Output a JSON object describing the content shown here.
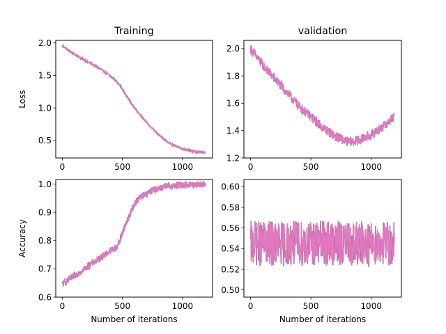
{
  "colors": {
    "series": "#e377c2",
    "underlay": "#555555",
    "frame": "#000000",
    "background": "#ffffff"
  },
  "chart_data": [
    {
      "id": "training-loss",
      "type": "line",
      "title": "Training",
      "xlabel": "",
      "ylabel": "Loss",
      "xlim": [
        -55,
        1250
      ],
      "ylim": [
        0.23,
        2.04
      ],
      "xticks": [
        0,
        500,
        1000
      ],
      "xtick_labels": [
        "0",
        "500",
        "1000"
      ],
      "yticks": [
        0.5,
        1.0,
        1.5,
        2.0
      ],
      "ytick_labels": [
        "0.5",
        "1.0",
        "1.5",
        "2.0"
      ],
      "grid": false,
      "x": [
        0,
        50,
        100,
        150,
        200,
        250,
        300,
        350,
        400,
        450,
        480,
        500,
        550,
        600,
        650,
        700,
        750,
        800,
        850,
        900,
        950,
        1000,
        1050,
        1100,
        1150,
        1190
      ],
      "y": [
        1.96,
        1.89,
        1.83,
        1.77,
        1.72,
        1.67,
        1.62,
        1.56,
        1.49,
        1.41,
        1.35,
        1.28,
        1.14,
        1.0,
        0.89,
        0.78,
        0.68,
        0.59,
        0.51,
        0.45,
        0.41,
        0.37,
        0.35,
        0.33,
        0.32,
        0.31
      ],
      "noise": 0.012
    },
    {
      "id": "validation-loss",
      "type": "line",
      "title": "validation",
      "xlabel": "",
      "ylabel": "",
      "xlim": [
        -55,
        1250
      ],
      "ylim": [
        1.2,
        2.06
      ],
      "xticks": [
        0,
        500,
        1000
      ],
      "xtick_labels": [
        "0",
        "500",
        "1000"
      ],
      "yticks": [
        1.2,
        1.4,
        1.6,
        1.8,
        2.0
      ],
      "ytick_labels": [
        "1.2",
        "1.4",
        "1.6",
        "1.8",
        "2.0"
      ],
      "grid": false,
      "x": [
        0,
        50,
        100,
        150,
        200,
        250,
        300,
        350,
        400,
        450,
        500,
        550,
        600,
        650,
        700,
        750,
        800,
        850,
        900,
        950,
        1000,
        1050,
        1100,
        1150,
        1190
      ],
      "y": [
        2.0,
        1.94,
        1.88,
        1.83,
        1.78,
        1.73,
        1.68,
        1.63,
        1.58,
        1.54,
        1.5,
        1.46,
        1.42,
        1.39,
        1.36,
        1.34,
        1.32,
        1.32,
        1.33,
        1.35,
        1.37,
        1.4,
        1.43,
        1.47,
        1.5
      ],
      "noise": 0.035
    },
    {
      "id": "training-accuracy",
      "type": "line",
      "title": "",
      "xlabel": "Number of iterations",
      "ylabel": "Accuracy",
      "xlim": [
        -55,
        1250
      ],
      "ylim": [
        0.6,
        1.016
      ],
      "xticks": [
        0,
        500,
        1000
      ],
      "xtick_labels": [
        "0",
        "500",
        "1000"
      ],
      "yticks": [
        0.6,
        0.7,
        0.8,
        0.9,
        1.0
      ],
      "ytick_labels": [
        "0.6",
        "0.7",
        "0.8",
        "0.9",
        "1.0"
      ],
      "grid": false,
      "x": [
        0,
        50,
        100,
        150,
        200,
        250,
        300,
        350,
        400,
        450,
        480,
        500,
        550,
        600,
        650,
        700,
        750,
        800,
        850,
        900,
        950,
        1000,
        1050,
        1100,
        1150,
        1190
      ],
      "y": [
        0.645,
        0.66,
        0.675,
        0.69,
        0.705,
        0.72,
        0.735,
        0.75,
        0.765,
        0.775,
        0.8,
        0.83,
        0.88,
        0.93,
        0.955,
        0.965,
        0.978,
        0.985,
        0.99,
        0.993,
        0.995,
        0.997,
        0.998,
        0.999,
        0.999,
        1.0
      ],
      "noise": 0.012
    },
    {
      "id": "validation-accuracy",
      "type": "line",
      "title": "",
      "xlabel": "Number of iterations",
      "ylabel": "",
      "xlim": [
        -55,
        1250
      ],
      "ylim": [
        0.493,
        0.607
      ],
      "xticks": [
        0,
        500,
        1000
      ],
      "xtick_labels": [
        "0",
        "500",
        "1000"
      ],
      "yticks": [
        0.5,
        0.52,
        0.54,
        0.56,
        0.58,
        0.6
      ],
      "ytick_labels": [
        "0.50",
        "0.52",
        "0.54",
        "0.56",
        "0.58",
        "0.60"
      ],
      "grid": false,
      "x": [
        0,
        200,
        400,
        600,
        800,
        1000,
        1190
      ],
      "y": [
        0.545,
        0.545,
        0.545,
        0.545,
        0.545,
        0.545,
        0.545
      ],
      "noise": 0.022
    }
  ]
}
